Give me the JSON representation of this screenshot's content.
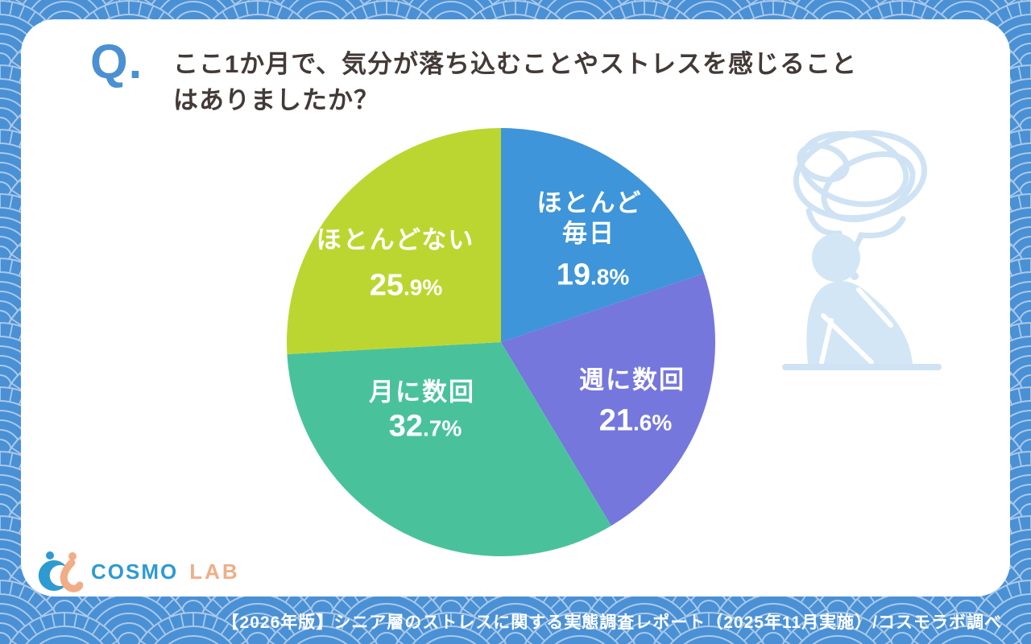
{
  "page": {
    "background_color": "#4a90d5",
    "pattern_line_color": "#a9c9ea",
    "pattern_style": "seigaiha-wave",
    "card_color": "#ffffff"
  },
  "question": {
    "mark": "Q.",
    "mark_color": "#4a90d2",
    "line1": "ここ1か月で、気分が落ち込むことやストレスを感じること",
    "line2": "はありましたか？",
    "text_color": "#433a37"
  },
  "chart_data": {
    "type": "pie",
    "title": "",
    "labels": [
      "ほとんど毎日",
      "週に数回",
      "月に数回",
      "ほとんどない"
    ],
    "label_display": [
      [
        "ほとんど",
        "毎日"
      ],
      [
        "週に数回"
      ],
      [
        "月に数回"
      ],
      [
        "ほとんどない"
      ]
    ],
    "values": [
      19.8,
      21.6,
      32.7,
      25.9
    ],
    "unit": "%",
    "colors": [
      "#3e95d9",
      "#7577dd",
      "#49c29c",
      "#bcd631"
    ],
    "start_angle_deg": 0,
    "direction": "clockwise",
    "label_color": "#ffffff",
    "legend": "none"
  },
  "illustration": {
    "name": "stressed-person-hugging-knees-with-tangled-thought-bubble",
    "color": "#d3e6f5"
  },
  "logo": {
    "text_primary": "COSMO",
    "text_secondary": "LAB",
    "primary_color": "#2e9ad2",
    "secondary_color": "#f0ad86"
  },
  "footer": {
    "text": "【2026年版】シニア層のストレスに関する実態調査レポート（2025年11月実施）/コスモラボ調べ"
  }
}
